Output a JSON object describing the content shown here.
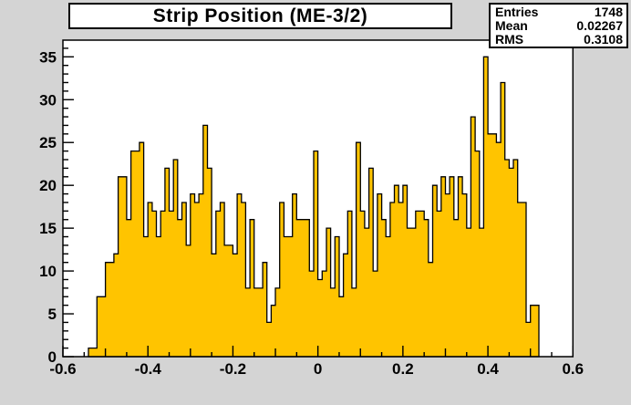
{
  "title_box": {
    "text": "Strip Position (ME-3/2)"
  },
  "stats_box": {
    "rows": [
      {
        "label": "Entries",
        "value": "1748"
      },
      {
        "label": "Mean",
        "value": "0.02267"
      },
      {
        "label": "RMS",
        "value": "0.3108"
      }
    ]
  },
  "chart_data": {
    "type": "bar",
    "subtype": "histogram",
    "title": "Strip Position (ME-3/2)",
    "bin_start": -0.54,
    "bin_width": 0.01,
    "values": [
      1,
      1,
      7,
      7,
      11,
      11,
      12,
      21,
      21,
      16,
      24,
      24,
      25,
      14,
      18,
      17,
      14,
      17,
      22,
      17,
      23,
      16,
      18,
      13,
      19,
      18,
      19,
      27,
      22,
      12,
      17,
      18,
      13,
      13,
      12,
      19,
      18,
      8,
      16,
      8,
      8,
      11,
      4,
      6,
      8,
      18,
      14,
      14,
      19,
      16,
      16,
      16,
      10,
      24,
      9,
      10,
      15,
      8,
      14,
      7,
      12,
      17,
      8,
      25,
      17,
      15,
      22,
      10,
      19,
      16,
      14,
      18,
      20,
      18,
      20,
      15,
      15,
      17,
      17,
      16,
      11,
      20,
      17,
      21,
      19,
      21,
      16,
      21,
      19,
      15,
      28,
      24,
      15,
      35,
      26,
      26,
      25,
      32,
      23,
      22,
      23,
      18,
      18,
      4,
      6,
      6
    ],
    "xlim": [
      -0.6,
      0.6
    ],
    "ylim": [
      0,
      36.95
    ],
    "x_major_ticks": [
      -0.6,
      -0.4,
      -0.2,
      0,
      0.2,
      0.4,
      0.6
    ],
    "x_tick_labels": [
      "-0.6",
      "-0.4",
      "-0.2",
      "0",
      "0.2",
      "0.4",
      "0.6"
    ],
    "x_minor_step": 0.05,
    "y_major_step": 5,
    "y_minor_step": 1,
    "y_tick_labels": [
      "0",
      "5",
      "10",
      "15",
      "20",
      "25",
      "30",
      "35"
    ],
    "grid": "off",
    "legend": "none",
    "fill_color": "#ffc400",
    "line_color": "#000000",
    "frame_bg": "#ffffff",
    "canvas_bg": "#d4d4d4",
    "stats": {
      "entries": 1748,
      "mean": 0.02267,
      "rms": 0.3108
    }
  }
}
